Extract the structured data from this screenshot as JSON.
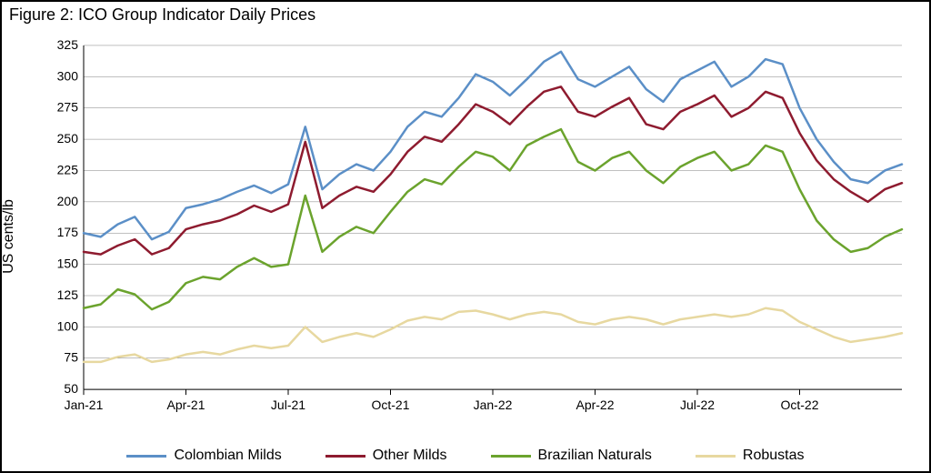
{
  "title": "Figure 2: ICO Group Indicator Daily Prices",
  "chart": {
    "type": "line",
    "ylabel": "US cents/lb",
    "background_color": "#ffffff",
    "grid_color": "#808080",
    "grid_width": 0.5,
    "axis_color": "#000000",
    "ylim": [
      50,
      325
    ],
    "ytick_step": 25,
    "yticks": [
      50,
      75,
      100,
      125,
      150,
      175,
      200,
      225,
      250,
      275,
      300,
      325
    ],
    "n_x": 49,
    "xtick_indices": [
      0,
      6,
      12,
      18,
      24,
      30,
      36,
      42
    ],
    "xtick_labels": [
      "Jan-21",
      "Apr-21",
      "Jul-21",
      "Oct-21",
      "Jan-22",
      "Apr-22",
      "Jul-22",
      "Oct-22"
    ],
    "line_width": 2.5,
    "title_fontsize": 18,
    "label_fontsize": 16,
    "tick_fontsize": 14,
    "series": [
      {
        "name": "Colombian Milds",
        "color": "#5b8fc7",
        "values": [
          175,
          172,
          182,
          188,
          170,
          176,
          195,
          198,
          202,
          208,
          213,
          207,
          214,
          260,
          210,
          222,
          230,
          225,
          240,
          260,
          272,
          268,
          283,
          302,
          296,
          285,
          298,
          312,
          320,
          298,
          292,
          300,
          308,
          290,
          280,
          298,
          305,
          312,
          292,
          300,
          314,
          310,
          275,
          250,
          232,
          218,
          215,
          225,
          230
        ]
      },
      {
        "name": "Other Milds",
        "color": "#8e1b2f",
        "values": [
          160,
          158,
          165,
          170,
          158,
          163,
          178,
          182,
          185,
          190,
          197,
          192,
          198,
          248,
          195,
          205,
          212,
          208,
          222,
          240,
          252,
          248,
          262,
          278,
          272,
          262,
          276,
          288,
          292,
          272,
          268,
          276,
          283,
          262,
          258,
          272,
          278,
          285,
          268,
          275,
          288,
          283,
          255,
          233,
          218,
          208,
          200,
          210,
          215
        ]
      },
      {
        "name": "Brazilian Naturals",
        "color": "#6ba32d",
        "values": [
          115,
          118,
          130,
          126,
          114,
          120,
          135,
          140,
          138,
          148,
          155,
          148,
          150,
          205,
          160,
          172,
          180,
          175,
          192,
          208,
          218,
          214,
          228,
          240,
          236,
          225,
          245,
          252,
          258,
          232,
          225,
          235,
          240,
          225,
          215,
          228,
          235,
          240,
          225,
          230,
          245,
          240,
          210,
          185,
          170,
          160,
          163,
          172,
          178
        ]
      },
      {
        "name": "Robustas",
        "color": "#e7d8a0",
        "values": [
          72,
          72,
          76,
          78,
          72,
          74,
          78,
          80,
          78,
          82,
          85,
          83,
          85,
          100,
          88,
          92,
          95,
          92,
          98,
          105,
          108,
          106,
          112,
          113,
          110,
          106,
          110,
          112,
          110,
          104,
          102,
          106,
          108,
          106,
          102,
          106,
          108,
          110,
          108,
          110,
          115,
          113,
          104,
          98,
          92,
          88,
          90,
          92,
          95
        ]
      }
    ],
    "legend_position": "bottom"
  }
}
